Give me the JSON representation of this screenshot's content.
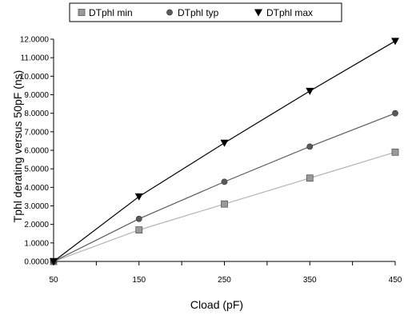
{
  "chart_data": {
    "type": "line",
    "x": [
      50,
      150,
      250,
      350,
      450
    ],
    "x_tick_labels": [
      "50",
      "150",
      "250",
      "350",
      "450"
    ],
    "xlim": [
      50,
      450
    ],
    "ylim": [
      0,
      12
    ],
    "y_tick_labels": [
      "0.0000",
      "1.0000",
      "2.0000",
      "3.0000",
      "4.0000",
      "5.0000",
      "6.0000",
      "7.0000",
      "8.0000",
      "9.0000",
      "10.0000",
      "11.0000",
      "12.0000"
    ],
    "xlabel": "Cload (pF)",
    "ylabel": "Tphl derating versus 50pF (ns)",
    "legend_position": "top",
    "grid": false,
    "series": [
      {
        "name": "DTphl min",
        "marker": "square",
        "marker_color": "#9a9a9a",
        "line_color": "#b4b4b4",
        "values": [
          0.0,
          1.7,
          3.1,
          4.5,
          5.9
        ]
      },
      {
        "name": "DTphl typ",
        "marker": "circle",
        "marker_color": "#5a5a5a",
        "line_color": "#5a5a5a",
        "values": [
          0.0,
          2.3,
          4.3,
          6.2,
          8.0
        ]
      },
      {
        "name": "DTphl max",
        "marker": "triangle-down",
        "marker_color": "#000000",
        "line_color": "#000000",
        "values": [
          0.0,
          3.5,
          6.4,
          9.2,
          11.9
        ]
      }
    ]
  }
}
